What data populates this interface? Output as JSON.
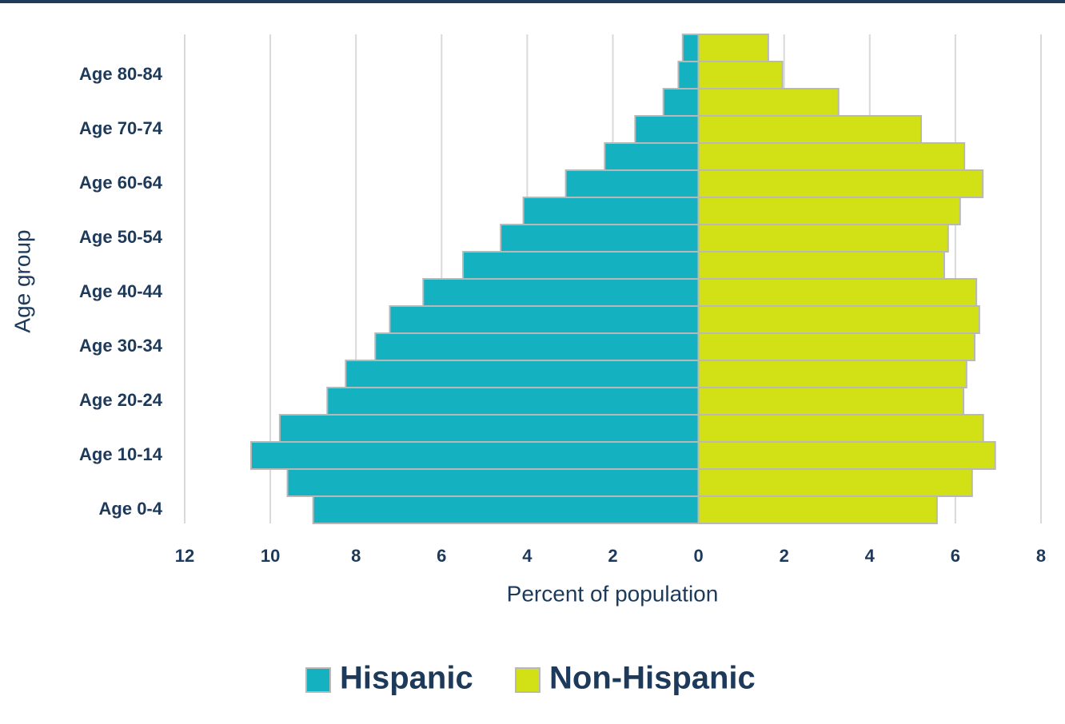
{
  "chart_data": {
    "type": "bar",
    "orientation": "horizontal",
    "stacking": "diverging",
    "x_label": "Percent of population",
    "y_label": "Age group",
    "categories": [
      "Age 0-4",
      null,
      "Age 10-14",
      null,
      "Age 20-24",
      null,
      "Age 30-34",
      null,
      "Age 40-44",
      null,
      "Age 50-54",
      null,
      "Age 60-64",
      null,
      "Age 70-74",
      null,
      "Age 80-84",
      null
    ],
    "series": [
      {
        "name": "Hispanic",
        "color": "#14b1c1",
        "values": [
          -9.0,
          -9.6,
          -10.45,
          -9.78,
          -8.67,
          -8.24,
          -7.55,
          -7.21,
          -6.43,
          -5.5,
          -4.62,
          -4.09,
          -3.1,
          -2.19,
          -1.48,
          -0.82,
          -0.47,
          -0.37
        ]
      },
      {
        "name": "Non-Hispanic",
        "color": "#d2e016",
        "values": [
          5.57,
          6.39,
          6.93,
          6.65,
          6.19,
          6.26,
          6.45,
          6.56,
          6.49,
          5.74,
          5.83,
          6.11,
          6.64,
          6.21,
          5.2,
          3.27,
          1.96,
          1.63
        ]
      }
    ],
    "xlim": [
      -12,
      8
    ],
    "xticks": [
      {
        "value": -12,
        "label": "12"
      },
      {
        "value": -10,
        "label": "10"
      },
      {
        "value": -8,
        "label": "8"
      },
      {
        "value": -6,
        "label": "6"
      },
      {
        "value": -4,
        "label": "4"
      },
      {
        "value": -2,
        "label": "2"
      },
      0,
      2,
      4,
      6,
      8
    ],
    "grid": true,
    "legend": "bottom"
  }
}
